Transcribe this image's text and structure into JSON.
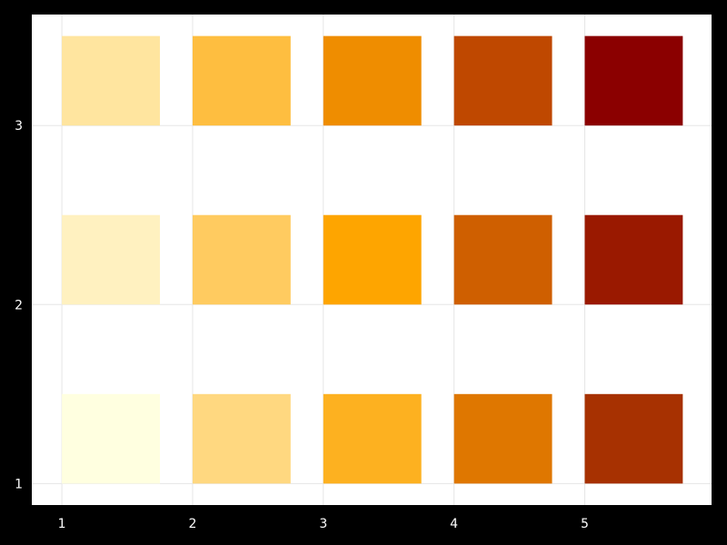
{
  "chart_data": {
    "type": "heatmap",
    "title": "",
    "xlabel": "",
    "ylabel": "",
    "xlim": [
      0.77,
      5.97
    ],
    "ylim": [
      0.88,
      3.62
    ],
    "x_ticks": [
      1,
      2,
      3,
      4,
      5
    ],
    "x_tick_labels": [
      "1",
      "2",
      "3",
      "4",
      "5"
    ],
    "y_ticks": [
      1,
      2,
      3
    ],
    "y_tick_labels": [
      "1",
      "2",
      "3"
    ],
    "grid": true,
    "background": "#ffffff",
    "frame_color": "#000000",
    "cell_size": [
      0.75,
      0.5
    ],
    "cells": [
      {
        "x": 1,
        "y": 1,
        "color": "#ffffe0"
      },
      {
        "x": 2,
        "y": 1,
        "color": "#ffd880"
      },
      {
        "x": 3,
        "y": 1,
        "color": "#fdb120"
      },
      {
        "x": 4,
        "y": 1,
        "color": "#df7700"
      },
      {
        "x": 5,
        "y": 1,
        "color": "#a73101"
      },
      {
        "x": 1,
        "y": 2,
        "color": "#fff1c0"
      },
      {
        "x": 2,
        "y": 2,
        "color": "#ffcb60"
      },
      {
        "x": 3,
        "y": 2,
        "color": "#fea500"
      },
      {
        "x": 4,
        "y": 2,
        "color": "#cf5f00"
      },
      {
        "x": 5,
        "y": 2,
        "color": "#9a1900"
      },
      {
        "x": 1,
        "y": 3,
        "color": "#ffe59f"
      },
      {
        "x": 2,
        "y": 3,
        "color": "#febe40"
      },
      {
        "x": 3,
        "y": 3,
        "color": "#ef8d00"
      },
      {
        "x": 4,
        "y": 3,
        "color": "#bf4800"
      },
      {
        "x": 5,
        "y": 3,
        "color": "#8b0000"
      }
    ]
  }
}
